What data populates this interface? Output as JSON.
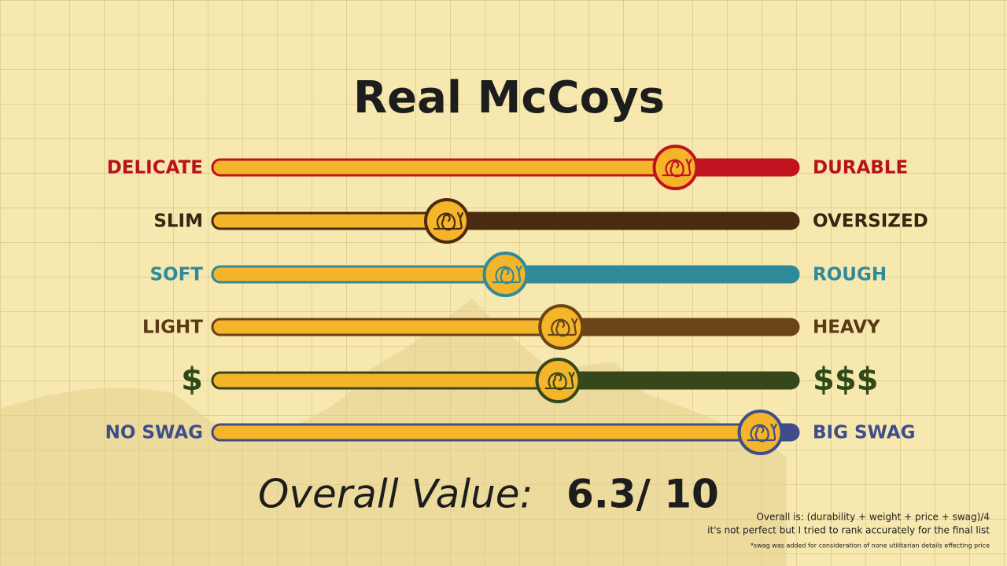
{
  "title": "Real McCoys",
  "sliders": [
    {
      "left": "DELICATE",
      "right": "DURABLE",
      "color": "#c0121f",
      "label_color": "#b8121c",
      "position": 0.79
    },
    {
      "left": "SLIM",
      "right": "OVERSIZED",
      "color": "#4a2a10",
      "label_color": "#3a2412",
      "position": 0.4
    },
    {
      "left": "SOFT",
      "right": "ROUGH",
      "color": "#2f8a99",
      "label_color": "#2f8a99",
      "position": 0.5
    },
    {
      "left": "LIGHT",
      "right": "HEAVY",
      "color": "#6a4416",
      "label_color": "#5a3a14",
      "position": 0.595
    },
    {
      "left": "$",
      "right": "$$$",
      "color": "#36481a",
      "label_color": "#2f4a18",
      "position": 0.59
    },
    {
      "left": "NO SWAG",
      "right": "BIG SWAG",
      "color": "#3f4e8a",
      "label_color": "#3f4e8a",
      "position": 0.935
    }
  ],
  "overall": {
    "label": "Overall Value:",
    "score": "6.3/ 10"
  },
  "notes": [
    "Overall is: (durability + weight + price + swag)/4",
    "it's not perfect but I tried to rank accurately for the final list",
    "*swag was added for consideration of none utilitarian details effecting price"
  ]
}
